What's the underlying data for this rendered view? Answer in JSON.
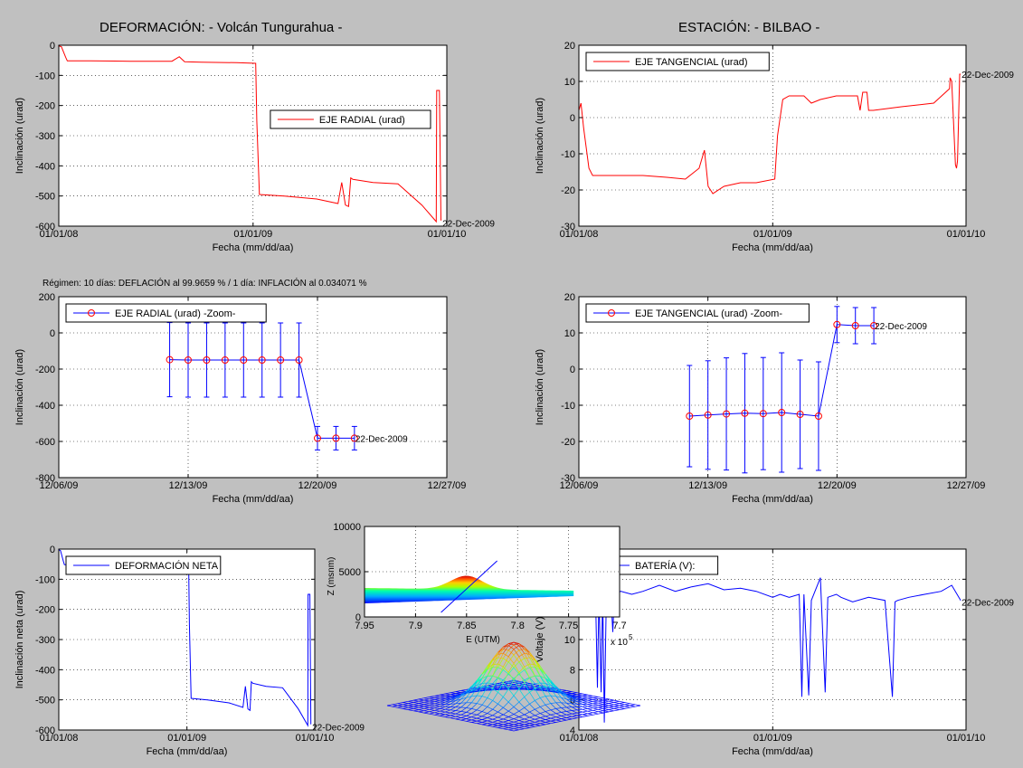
{
  "page": {
    "title_left": "DEFORMACIÓN: - Volcán Tungurahua -",
    "title_right": "ESTACIÓN: - BILBAO -",
    "regime_text": "Régimen: 10 días: DEFLACIÓN al 99.9659 % / 1 día: INFLACIÓN al 0.034071 %"
  },
  "chart_data": [
    {
      "id": "radial",
      "type": "line",
      "xlabel": "Fecha (mm/dd/aa)",
      "ylabel": "Inclinación (urad)",
      "xlim": [
        "2008-01-01",
        "2010-01-01"
      ],
      "ylim": [
        -600,
        0
      ],
      "xticks": [
        "2008-01-01",
        "2009-01-01",
        "2010-01-01"
      ],
      "xtick_labels": [
        "01/01/08",
        "01/01/09",
        "01/01/10"
      ],
      "yticks": [
        -600,
        -500,
        -400,
        -300,
        -200,
        -100,
        0
      ],
      "ytick_labels": [
        "-600",
        "-500",
        "-400",
        "-300",
        "-200",
        "-100",
        "0"
      ],
      "grid": true,
      "legend": "center-right",
      "annotation": {
        "text": "22-Dec-2009",
        "x": "2009-12-22",
        "y": -590
      },
      "series": [
        {
          "name": "EJE RADIAL (urad)",
          "color": "#ff0000",
          "x": [
            "2008-01-01",
            "2008-01-06",
            "2008-01-14",
            "2008-01-17",
            "2008-03-01",
            "2008-05-15",
            "2008-08-01",
            "2008-08-15",
            "2008-08-25",
            "2008-09-25",
            "2008-12-01",
            "2009-01-06",
            "2009-01-08",
            "2009-01-13",
            "2009-03-01",
            "2009-05-01",
            "2009-06-10",
            "2009-06-17",
            "2009-06-24",
            "2009-06-30",
            "2009-07-04",
            "2009-07-08",
            "2009-08-15",
            "2009-10-01",
            "2009-11-15",
            "2009-12-12",
            "2009-12-13",
            "2009-12-16",
            "2009-12-18",
            "2009-12-21",
            "2009-12-22"
          ],
          "y": [
            -2,
            -5,
            -40,
            -52,
            -52,
            -53,
            -53,
            -38,
            -55,
            -56,
            -58,
            -60,
            -250,
            -495,
            -500,
            -510,
            -525,
            -455,
            -530,
            -535,
            -440,
            -445,
            -455,
            -460,
            -530,
            -585,
            -150,
            -150,
            -150,
            -580,
            -580
          ]
        }
      ]
    },
    {
      "id": "tangential",
      "type": "line",
      "xlabel": "Fecha (mm/dd/aa)",
      "ylabel": "Inclinación (urad)",
      "xlim": [
        "2008-01-01",
        "2010-01-01"
      ],
      "ylim": [
        -30,
        20
      ],
      "xticks": [
        "2008-01-01",
        "2009-01-01",
        "2010-01-01"
      ],
      "xtick_labels": [
        "01/01/08",
        "01/01/09",
        "01/01/10"
      ],
      "yticks": [
        -30,
        -20,
        -10,
        0,
        10,
        20
      ],
      "ytick_labels": [
        "-30",
        "-20",
        "-10",
        "0",
        "10",
        "20"
      ],
      "grid": true,
      "legend": "top-left",
      "annotation": {
        "text": "22-Dec-2009",
        "x": "2009-12-22",
        "y": 12
      },
      "series": [
        {
          "name": "EJE TANGENCIAL (urad)",
          "color": "#ff0000",
          "x": [
            "2008-01-01",
            "2008-01-05",
            "2008-01-10",
            "2008-01-20",
            "2008-01-27",
            "2008-02-15",
            "2008-03-15",
            "2008-05-01",
            "2008-06-15",
            "2008-07-20",
            "2008-08-15",
            "2008-08-25",
            "2008-09-01",
            "2008-09-10",
            "2008-10-01",
            "2008-11-01",
            "2008-12-01",
            "2009-01-05",
            "2009-01-10",
            "2009-01-20",
            "2009-02-01",
            "2009-03-01",
            "2009-03-15",
            "2009-04-01",
            "2009-05-01",
            "2009-06-01",
            "2009-06-10",
            "2009-06-15",
            "2009-06-20",
            "2009-06-28",
            "2009-07-01",
            "2009-07-05",
            "2009-07-10",
            "2009-09-01",
            "2009-11-01",
            "2009-12-01",
            "2009-12-02",
            "2009-12-05",
            "2009-12-12",
            "2009-12-14",
            "2009-12-16",
            "2009-12-20",
            "2009-12-22"
          ],
          "y": [
            2,
            4,
            -3,
            -14,
            -16,
            -16,
            -16,
            -16,
            -16.5,
            -17,
            -14,
            -9,
            -19,
            -21,
            -19,
            -18,
            -18,
            -17,
            -5,
            5,
            6,
            6,
            4,
            5,
            6,
            6,
            6,
            2,
            7,
            7,
            2,
            2,
            2,
            3,
            4,
            8,
            11,
            10,
            -13,
            -14,
            -12,
            12,
            12
          ]
        }
      ]
    },
    {
      "id": "radial_zoom",
      "type": "line",
      "xlabel": "Fecha (mm/dd/aa)",
      "ylabel": "Inclinación (urad)",
      "xlim": [
        "2009-12-06",
        "2009-12-27"
      ],
      "ylim": [
        -800,
        200
      ],
      "xticks": [
        "2009-12-06",
        "2009-12-13",
        "2009-12-20",
        "2009-12-27"
      ],
      "xtick_labels": [
        "12/06/09",
        "12/13/09",
        "12/20/09",
        "12/27/09"
      ],
      "yticks": [
        -800,
        -600,
        -400,
        -200,
        0,
        200
      ],
      "ytick_labels": [
        "-800",
        "-600",
        "-400",
        "-200",
        "0",
        "200"
      ],
      "grid": true,
      "legend": "top-left",
      "annotation": {
        "text": "22-Dec-2009",
        "x": "2009-12-22",
        "y": -582
      },
      "series": [
        {
          "name": "EJE RADIAL (urad) -Zoom-",
          "color": "#0000ff",
          "marker_color": "#ff0000",
          "x": [
            "2009-12-12",
            "2009-12-13",
            "2009-12-14",
            "2009-12-15",
            "2009-12-16",
            "2009-12-17",
            "2009-12-18",
            "2009-12-19",
            "2009-12-20",
            "2009-12-21",
            "2009-12-22"
          ],
          "y": [
            -148,
            -150,
            -150,
            -150,
            -150,
            -150,
            -150,
            -150,
            -582,
            -582,
            -582
          ],
          "err": [
            205,
            205,
            205,
            205,
            205,
            205,
            205,
            205,
            65,
            65,
            65
          ]
        }
      ]
    },
    {
      "id": "tangential_zoom",
      "type": "line",
      "xlabel": "Fecha (mm/dd/aa)",
      "ylabel": "Inclinación (urad)",
      "xlim": [
        "2009-12-06",
        "2009-12-27"
      ],
      "ylim": [
        -30,
        20
      ],
      "xticks": [
        "2009-12-06",
        "2009-12-13",
        "2009-12-20",
        "2009-12-27"
      ],
      "xtick_labels": [
        "12/06/09",
        "12/13/09",
        "12/20/09",
        "12/27/09"
      ],
      "yticks": [
        -30,
        -20,
        -10,
        0,
        10,
        20
      ],
      "ytick_labels": [
        "-30",
        "-20",
        "-10",
        "0",
        "10",
        "20"
      ],
      "grid": true,
      "legend": "top-left",
      "annotation": {
        "text": "22-Dec-2009",
        "x": "2009-12-22",
        "y": 12
      },
      "series": [
        {
          "name": "EJE TANGENCIAL (urad) -Zoom-",
          "color": "#0000ff",
          "marker_color": "#ff0000",
          "x": [
            "2009-12-12",
            "2009-12-13",
            "2009-12-14",
            "2009-12-15",
            "2009-12-16",
            "2009-12-17",
            "2009-12-18",
            "2009-12-19",
            "2009-12-20",
            "2009-12-21",
            "2009-12-22"
          ],
          "y": [
            -13,
            -12.7,
            -12.4,
            -12.2,
            -12.3,
            -12,
            -12.5,
            -13,
            12.3,
            12,
            12
          ],
          "err": [
            14,
            15,
            15.5,
            16.5,
            15.5,
            16.5,
            15,
            15,
            5,
            5,
            5
          ]
        }
      ]
    },
    {
      "id": "net",
      "type": "line",
      "xlabel": "Fecha (mm/dd/aa)",
      "ylabel": "Inclinación neta (urad)",
      "xlim": [
        "2008-01-01",
        "2010-01-01"
      ],
      "ylim": [
        -600,
        0
      ],
      "xticks": [
        "2008-01-01",
        "2009-01-01",
        "2010-01-01"
      ],
      "xtick_labels": [
        "01/01/08",
        "01/01/09",
        "01/01/10"
      ],
      "yticks": [
        -600,
        -500,
        -400,
        -300,
        -200,
        -100,
        0
      ],
      "ytick_labels": [
        "-600",
        "-500",
        "-400",
        "-300",
        "-200",
        "-100",
        "0"
      ],
      "grid": true,
      "legend": "top-left",
      "annotation": {
        "text": "22-Dec-2009",
        "x": "2009-12-22",
        "y": -590
      },
      "series": [
        {
          "name": "DEFORMACIÓN NETA",
          "color": "#0000ff",
          "x": [
            "2008-01-01",
            "2008-01-06",
            "2008-01-14",
            "2008-01-17",
            "2008-03-01",
            "2008-05-15",
            "2008-08-01",
            "2008-08-15",
            "2008-08-25",
            "2008-09-25",
            "2008-12-01",
            "2009-01-06",
            "2009-01-08",
            "2009-01-13",
            "2009-03-01",
            "2009-05-01",
            "2009-06-10",
            "2009-06-17",
            "2009-06-24",
            "2009-06-30",
            "2009-07-04",
            "2009-07-08",
            "2009-08-15",
            "2009-10-01",
            "2009-11-15",
            "2009-12-12",
            "2009-12-13",
            "2009-12-16",
            "2009-12-18",
            "2009-12-21",
            "2009-12-22"
          ],
          "y": [
            -2,
            -5,
            -40,
            -52,
            -52,
            -53,
            -53,
            -38,
            -55,
            -56,
            -58,
            -60,
            -250,
            -495,
            -500,
            -510,
            -525,
            -455,
            -530,
            -535,
            -440,
            -445,
            -455,
            -460,
            -530,
            -585,
            -150,
            -150,
            -150,
            -580,
            -580
          ]
        }
      ]
    },
    {
      "id": "battery",
      "type": "line",
      "xlabel": "Fecha (mm/dd/aa)",
      "ylabel": "Voltaje (V)",
      "xlim": [
        "2008-01-01",
        "2010-01-01"
      ],
      "ylim": [
        4,
        16
      ],
      "xticks": [
        "2008-01-01",
        "2009-01-01",
        "2010-01-01"
      ],
      "xtick_labels": [
        "01/01/08",
        "01/01/09",
        "01/01/10"
      ],
      "yticks": [
        4,
        6,
        8,
        10,
        12,
        14,
        16
      ],
      "ytick_labels": [
        "4",
        "6",
        "8",
        "10",
        "12",
        "14",
        "16"
      ],
      "grid": true,
      "legend": "top-left",
      "annotation": {
        "text": "22-Dec-2009",
        "x": "2009-12-22",
        "y": 12.5
      },
      "series": [
        {
          "name": "BATERÍA (V):",
          "color": "#0000ff",
          "x": [
            "2008-01-01",
            "2008-01-10",
            "2008-01-20",
            "2008-02-01",
            "2008-02-05",
            "2008-02-08",
            "2008-02-12",
            "2008-02-15",
            "2008-02-18",
            "2008-02-22",
            "2008-03-01",
            "2008-03-05",
            "2008-03-08",
            "2008-03-20",
            "2008-04-10",
            "2008-05-01",
            "2008-06-01",
            "2008-07-01",
            "2008-08-01",
            "2008-09-01",
            "2008-10-01",
            "2008-11-01",
            "2008-12-01",
            "2009-01-01",
            "2009-01-15",
            "2009-02-01",
            "2009-02-20",
            "2009-02-25",
            "2009-03-01",
            "2009-03-10",
            "2009-03-15",
            "2009-04-01",
            "2009-04-10",
            "2009-04-15",
            "2009-05-01",
            "2009-05-10",
            "2009-06-01",
            "2009-07-01",
            "2009-08-01",
            "2009-08-15",
            "2009-08-20",
            "2009-08-25",
            "2009-09-15",
            "2009-10-15",
            "2009-11-15",
            "2009-12-05",
            "2009-12-22"
          ],
          "y": [
            11.8,
            12.5,
            13.2,
            13.5,
            6.8,
            13.0,
            6.5,
            13.2,
            4.5,
            13.0,
            13.2,
            10.5,
            13.0,
            13.2,
            13.0,
            13.2,
            13.6,
            13.2,
            13.5,
            13.7,
            13.3,
            13.4,
            13.2,
            12.8,
            13.0,
            12.8,
            13.0,
            6.2,
            13.0,
            6.3,
            12.6,
            14.1,
            6.5,
            12.8,
            13.0,
            12.8,
            12.5,
            12.8,
            12.6,
            6.2,
            12.5,
            12.6,
            12.8,
            13.0,
            13.2,
            13.6,
            12.6
          ]
        }
      ]
    }
  ],
  "inset_2d": {
    "xlabel": "E (UTM)",
    "ylabel": "Z (msnm)",
    "exponent_label": "x 10",
    "exponent_power": "5",
    "xticks": [
      7.95,
      7.9,
      7.85,
      7.8,
      7.75,
      7.7
    ],
    "xtick_labels": [
      "7.95",
      "7.9",
      "7.85",
      "7.8",
      "7.75",
      "7.7"
    ],
    "yticks": [
      0,
      5000,
      10000
    ],
    "ytick_labels": [
      "0",
      "5000",
      "10000"
    ],
    "xlim": [
      7.95,
      7.7
    ],
    "ylim": [
      0,
      10000
    ]
  },
  "inset_3d": {
    "surface_type": "gaussian mesh"
  }
}
